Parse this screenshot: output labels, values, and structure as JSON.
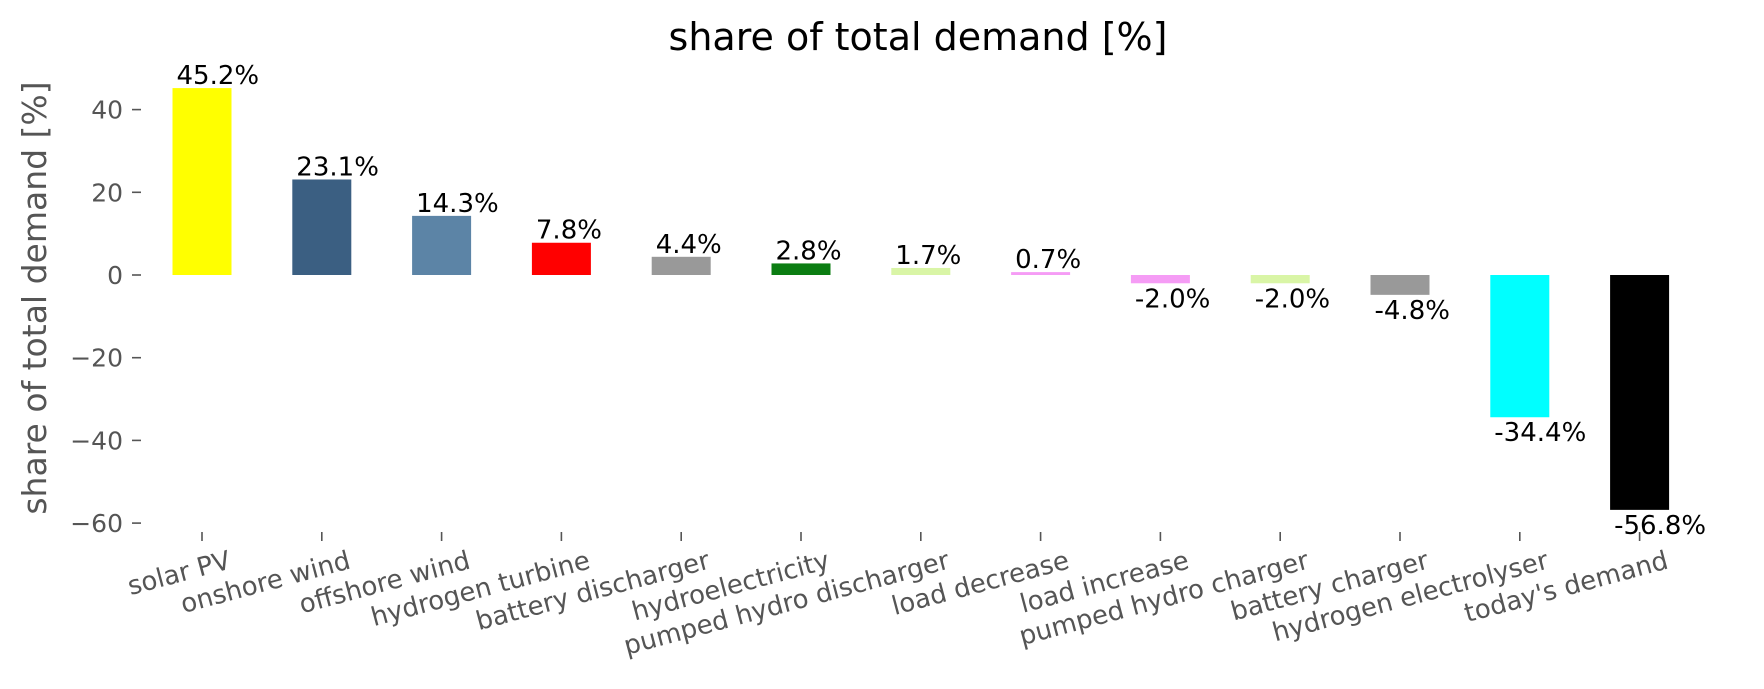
{
  "chart_data": {
    "type": "bar",
    "title": "share of total demand [%]",
    "xlabel": "",
    "ylabel": "share of total demand [%]",
    "ylim": [
      -63,
      50
    ],
    "yticks": [
      40,
      20,
      0,
      -20,
      -40,
      -60
    ],
    "ytick_labels": [
      "40",
      "20",
      "0",
      "−20",
      "−40",
      "−60"
    ],
    "grid": false,
    "categories": [
      "solar PV",
      "onshore wind",
      "offshore wind",
      "hydrogen turbine",
      "battery discharger",
      "hydroelectricity",
      "pumped hydro discharger",
      "load decrease",
      "load increase",
      "pumped hydro charger",
      "battery charger",
      "hydrogen electrolyser",
      "today's demand"
    ],
    "values": [
      45.2,
      23.1,
      14.3,
      7.8,
      4.4,
      2.8,
      1.7,
      0.7,
      -2.0,
      -2.0,
      -4.8,
      -34.4,
      -56.8
    ],
    "data_labels": [
      "45.2%",
      "23.1%",
      "14.3%",
      "7.8%",
      "4.4%",
      "2.8%",
      "1.7%",
      "0.7%",
      "-2.0%",
      "-2.0%",
      "-4.8%",
      "-34.4%",
      "-56.8%"
    ],
    "colors": [
      "#ffff00",
      "#3b5f82",
      "#5c84a6",
      "#ff0000",
      "#999999",
      "#0b7d12",
      "#d9f5a6",
      "#f59cf5",
      "#f59cf5",
      "#d9f5a6",
      "#999999",
      "#00ffff",
      "#000000"
    ]
  }
}
